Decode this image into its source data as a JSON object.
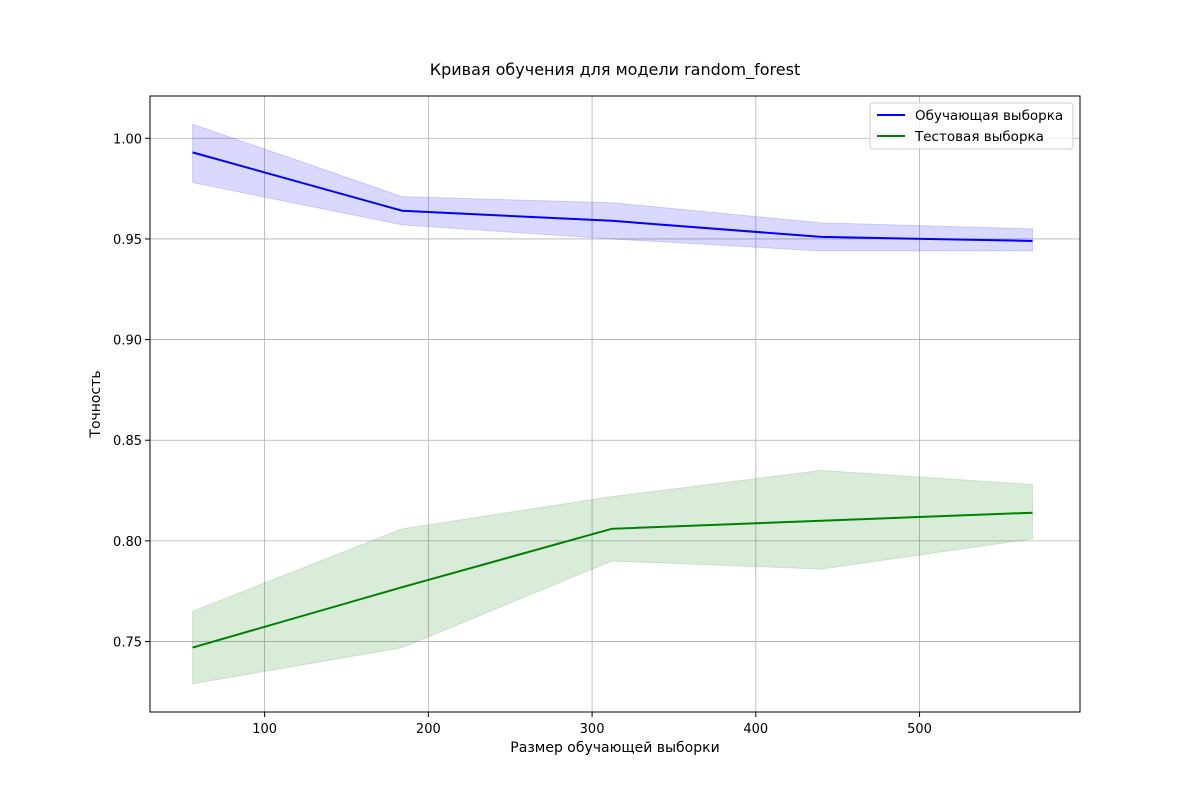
{
  "chart_data": {
    "type": "line",
    "title": "Кривая обучения для модели random_forest",
    "xlabel": "Размер обучающей выборки",
    "ylabel": "Точность",
    "xlim": [
      30,
      598
    ],
    "ylim": [
      0.715,
      1.021
    ],
    "x_ticks": [
      100,
      200,
      300,
      400,
      500
    ],
    "y_ticks": [
      0.75,
      0.8,
      0.85,
      0.9,
      0.95,
      1.0
    ],
    "x_tick_labels": [
      "100",
      "200",
      "300",
      "400",
      "500"
    ],
    "y_tick_labels": [
      "0.75",
      "0.80",
      "0.85",
      "0.90",
      "0.95",
      "1.00"
    ],
    "grid": true,
    "legend_position": "top-right",
    "x": [
      56,
      184,
      312,
      440,
      569
    ],
    "series": [
      {
        "name": "Обучающая выборка",
        "color": "#0000ff",
        "values": [
          0.993,
          0.964,
          0.959,
          0.951,
          0.949
        ],
        "lower": [
          0.978,
          0.957,
          0.95,
          0.944,
          0.944
        ],
        "upper": [
          1.007,
          0.971,
          0.968,
          0.958,
          0.955
        ]
      },
      {
        "name": "Тестовая выборка",
        "color": "#008000",
        "values": [
          0.747,
          0.777,
          0.806,
          0.81,
          0.814
        ],
        "lower": [
          0.729,
          0.747,
          0.79,
          0.786,
          0.801
        ],
        "upper": [
          0.765,
          0.806,
          0.822,
          0.835,
          0.828
        ]
      }
    ]
  }
}
